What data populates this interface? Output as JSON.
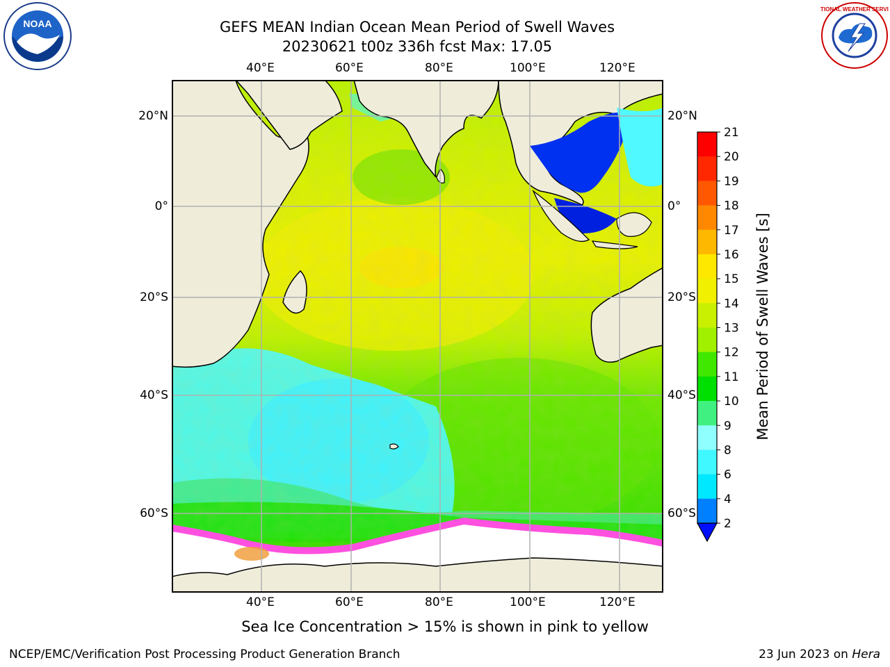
{
  "header": {
    "title_line1": "GEFS MEAN Indian Ocean Mean Period of Swell Waves",
    "title_line2": "20230621 t00z 336h fcst   Max: 17.05"
  },
  "logos": {
    "noaa_text": "NOAA",
    "nws_text": "NATIONAL WEATHER SERVICE"
  },
  "map": {
    "lon_labels": [
      "40°E",
      "60°E",
      "80°E",
      "100°E",
      "120°E"
    ],
    "lat_labels": [
      "20°N",
      "0°",
      "20°S",
      "40°S",
      "60°S"
    ],
    "colors": {
      "land": "#efedda",
      "ice": "#ffffff",
      "grid": "#b0b0b0"
    }
  },
  "colorbar": {
    "label": "Mean Period of Swell Waves [s]",
    "ticks": [
      "2",
      "4",
      "6",
      "8",
      "9",
      "10",
      "11",
      "12",
      "13",
      "14",
      "15",
      "16",
      "17",
      "18",
      "19",
      "20",
      "21"
    ],
    "colors": [
      "#0030ff",
      "#0080ff",
      "#00e8ff",
      "#40f8ff",
      "#90ffff",
      "#40f080",
      "#00e000",
      "#40e800",
      "#a0f000",
      "#c8f000",
      "#f0f000",
      "#ffe800",
      "#ffb800",
      "#ff8800",
      "#ff5800",
      "#ff2800",
      "#ff0000"
    ]
  },
  "footer": {
    "caption": "Sea Ice Concentration > 15% is shown in pink to yellow",
    "left": "NCEP/EMC/Verification Post Processing Product Generation Branch",
    "right_prefix": "23 Jun 2023 on ",
    "right_host": "Hera"
  }
}
